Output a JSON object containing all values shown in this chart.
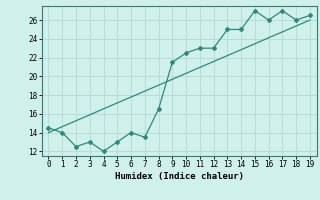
{
  "x": [
    0,
    1,
    2,
    3,
    4,
    5,
    6,
    7,
    8,
    9,
    10,
    11,
    12,
    13,
    14,
    15,
    16,
    17,
    18,
    19
  ],
  "y_curve": [
    14.5,
    14.0,
    12.5,
    13.0,
    12.0,
    13.0,
    14.0,
    13.5,
    16.5,
    21.5,
    22.5,
    23.0,
    23.0,
    25.0,
    25.0,
    27.0,
    26.0,
    27.0,
    26.0,
    26.5
  ],
  "y_trend": [
    14.0,
    14.63,
    15.26,
    15.89,
    16.53,
    17.16,
    17.79,
    18.42,
    19.05,
    19.68,
    20.32,
    20.95,
    21.58,
    22.21,
    22.84,
    23.47,
    24.11,
    24.74,
    25.37,
    26.0
  ],
  "line_color": "#2e8b7a",
  "bg_color": "#cff0eb",
  "grid_color": "#b8ddd8",
  "xlabel": "Humidex (Indice chaleur)",
  "ylim": [
    11.5,
    27.5
  ],
  "xlim": [
    -0.5,
    19.5
  ],
  "yticks": [
    12,
    14,
    16,
    18,
    20,
    22,
    24,
    26
  ],
  "xticks": [
    0,
    1,
    2,
    3,
    4,
    5,
    6,
    7,
    8,
    9,
    10,
    11,
    12,
    13,
    14,
    15,
    16,
    17,
    18,
    19
  ]
}
